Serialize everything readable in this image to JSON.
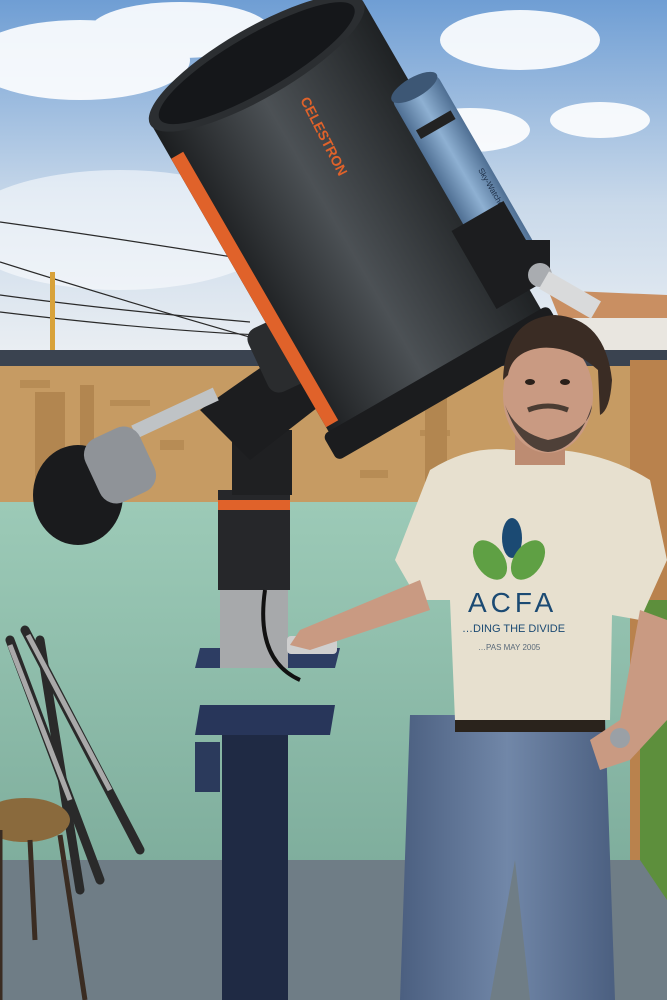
{
  "photo": {
    "telescope_brand_text": "CELESTRON",
    "finder_scope_text": "Sky-Watcher",
    "shirt_logo_text": "ACFA",
    "shirt_tagline_text": "…DING THE DIVIDE",
    "shirt_date_text": "…PAS MAY 2005"
  },
  "colors": {
    "sky_top": "#7fa6d6",
    "sky_bottom": "#e9eef3",
    "ota_body": "#2d3033",
    "ota_accent": "#e0622a",
    "finder_scope": "#6b8fb5",
    "wall": "#8fbfae",
    "osb_fence": "#c69b63",
    "floor": "#6f7d86",
    "pier": "#1f2a44",
    "shirt": "#e7e0cf",
    "jeans": "#5c7294",
    "skin": "#c99a82",
    "hair": "#3a2c24",
    "logo_green": "#5fa044",
    "logo_blue": "#1b4a73"
  }
}
